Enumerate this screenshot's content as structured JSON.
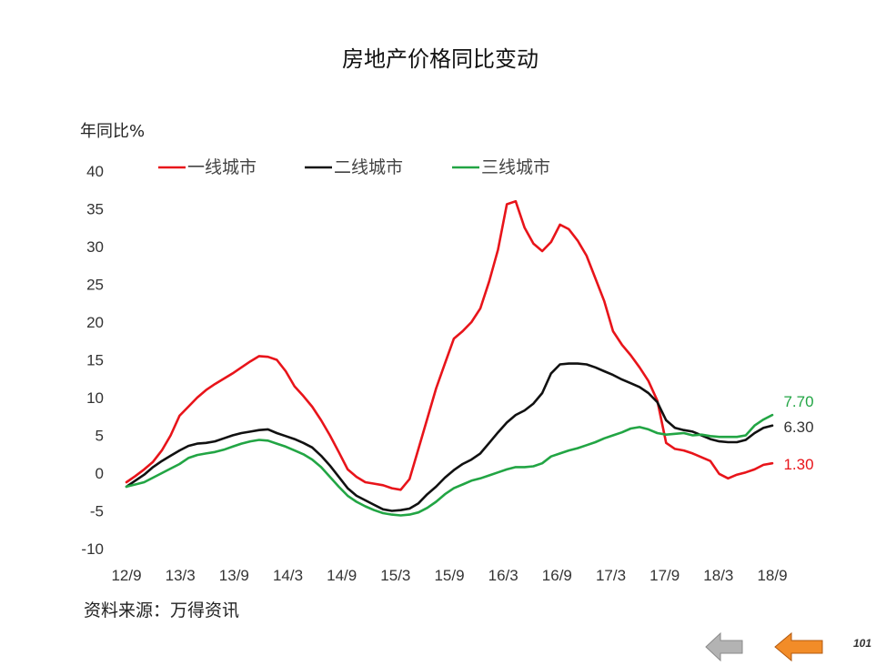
{
  "footer": {
    "source": "资料来源：万得资讯",
    "page_number": "101"
  },
  "nav": {
    "prev_color": "#b3b3b3",
    "next_color": "#f28c28"
  },
  "chart_data": {
    "type": "line",
    "title": "房地产价格同比变动",
    "ylabel": "年同比%",
    "ylim": [
      -10,
      40
    ],
    "yticks": [
      -10,
      -5,
      0,
      5,
      10,
      15,
      20,
      25,
      30,
      35,
      40
    ],
    "x_tick_labels": [
      "12/9",
      "13/3",
      "13/9",
      "14/3",
      "14/9",
      "15/3",
      "15/9",
      "16/3",
      "16/9",
      "17/3",
      "17/9",
      "18/3",
      "18/9"
    ],
    "x_start": "2012-09",
    "x_end": "2018-09",
    "grid": false,
    "legend_position": "top",
    "series": [
      {
        "name": "一线城市",
        "color": "#e8141a",
        "end_label": "1.30",
        "values": [
          -1.2,
          -0.4,
          0.5,
          1.5,
          3.0,
          5.0,
          7.6,
          8.8,
          10.0,
          11.0,
          11.8,
          12.5,
          13.2,
          14.0,
          14.8,
          15.5,
          15.4,
          15.0,
          13.5,
          11.5,
          10.2,
          8.8,
          7.0,
          5.0,
          2.8,
          0.5,
          -0.5,
          -1.2,
          -1.4,
          -1.6,
          -2.0,
          -2.2,
          -0.8,
          3.2,
          7.2,
          11.2,
          14.5,
          17.8,
          18.8,
          20.0,
          21.8,
          25.4,
          29.6,
          35.6,
          36.0,
          32.5,
          30.4,
          29.4,
          30.6,
          32.9,
          32.3,
          30.8,
          28.8,
          25.8,
          22.8,
          18.8,
          17.0,
          15.6,
          14.0,
          12.2,
          9.6,
          4.0,
          3.2,
          3.0,
          2.6,
          2.1,
          1.6,
          -0.1,
          -0.7,
          -0.2,
          0.1,
          0.5,
          1.1,
          1.3
        ]
      },
      {
        "name": "二线城市",
        "color": "#111111",
        "end_label": "6.30",
        "values": [
          -1.8,
          -1.0,
          -0.2,
          0.8,
          1.6,
          2.3,
          3.0,
          3.6,
          3.9,
          4.0,
          4.2,
          4.6,
          5.0,
          5.3,
          5.5,
          5.7,
          5.8,
          5.3,
          4.9,
          4.5,
          4.0,
          3.4,
          2.3,
          1.0,
          -0.5,
          -2.0,
          -3.0,
          -3.6,
          -4.2,
          -4.8,
          -5.0,
          -4.9,
          -4.7,
          -4.0,
          -2.8,
          -1.8,
          -0.6,
          0.4,
          1.2,
          1.8,
          2.6,
          4.0,
          5.4,
          6.7,
          7.7,
          8.3,
          9.2,
          10.6,
          13.2,
          14.4,
          14.5,
          14.5,
          14.4,
          14.0,
          13.5,
          13.0,
          12.4,
          11.9,
          11.4,
          10.6,
          9.4,
          7.0,
          6.0,
          5.7,
          5.5,
          5.0,
          4.5,
          4.2,
          4.1,
          4.1,
          4.4,
          5.3,
          6.0,
          6.3
        ]
      },
      {
        "name": "三线城市",
        "color": "#22a544",
        "end_label": "7.70",
        "values": [
          -1.8,
          -1.5,
          -1.2,
          -0.6,
          0.0,
          0.6,
          1.2,
          2.0,
          2.4,
          2.6,
          2.8,
          3.1,
          3.5,
          3.9,
          4.2,
          4.4,
          4.3,
          3.9,
          3.5,
          3.0,
          2.5,
          1.8,
          0.8,
          -0.5,
          -1.8,
          -3.0,
          -3.8,
          -4.4,
          -4.9,
          -5.3,
          -5.5,
          -5.6,
          -5.5,
          -5.2,
          -4.6,
          -3.8,
          -2.8,
          -2.0,
          -1.5,
          -1.0,
          -0.7,
          -0.3,
          0.1,
          0.5,
          0.8,
          0.8,
          0.9,
          1.3,
          2.2,
          2.6,
          3.0,
          3.3,
          3.7,
          4.1,
          4.6,
          5.0,
          5.4,
          5.9,
          6.1,
          5.8,
          5.3,
          5.1,
          5.2,
          5.3,
          5.0,
          5.1,
          4.9,
          4.8,
          4.8,
          4.8,
          5.0,
          6.3,
          7.1,
          7.7
        ]
      }
    ]
  }
}
